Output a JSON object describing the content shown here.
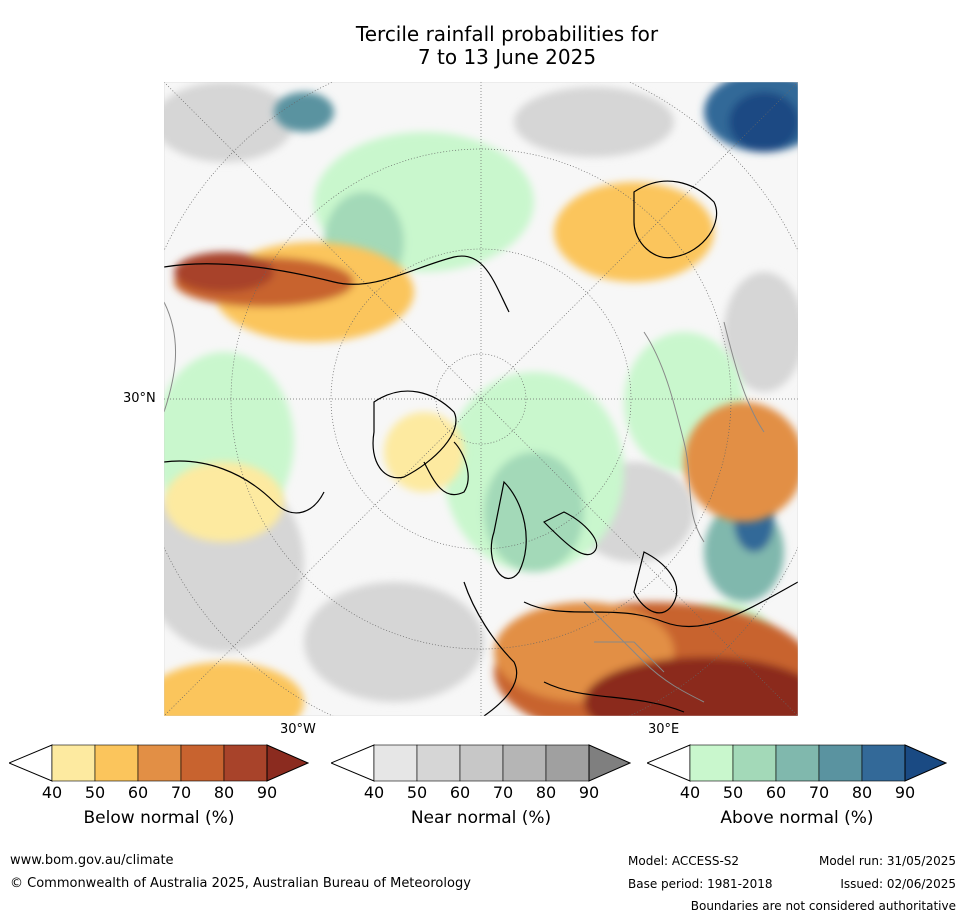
{
  "title": {
    "line1": "Tercile rainfall probabilities for",
    "line2": "7 to 13 June 2025"
  },
  "map": {
    "projection": "polar stereographic, northern hemisphere",
    "labels": {
      "lat": "30°N",
      "lon_w": "30°W",
      "lon_e": "30°E"
    }
  },
  "legend": [
    {
      "name": "below",
      "title": "Below normal (%)",
      "ticks": [
        "40",
        "50",
        "60",
        "70",
        "80",
        "90"
      ],
      "colors": [
        "#ffffff",
        "#fdeaa0",
        "#fbc55c",
        "#e28f45",
        "#c8632f",
        "#a8432a",
        "#8b2b1f"
      ]
    },
    {
      "name": "near",
      "title": "Near normal (%)",
      "ticks": [
        "40",
        "50",
        "60",
        "70",
        "80",
        "90"
      ],
      "colors": [
        "#ffffff",
        "#e6e6e6",
        "#d6d6d6",
        "#c7c7c7",
        "#b5b5b5",
        "#a0a0a0",
        "#7f7f7f"
      ]
    },
    {
      "name": "above",
      "title": "Above normal (%)",
      "ticks": [
        "40",
        "50",
        "60",
        "70",
        "80",
        "90"
      ],
      "colors": [
        "#ffffff",
        "#c9f7cd",
        "#a3d9b8",
        "#80b8ad",
        "#5a93a0",
        "#336998",
        "#1a4a83"
      ]
    }
  ],
  "footer": {
    "url": "www.bom.gov.au/climate",
    "copyright": "© Commonwealth of Australia 2025, Australian Bureau of Meteorology",
    "model": "Model: ACCESS-S2",
    "base_period": "Base period: 1981-2018",
    "model_run": "Model run: 31/05/2025",
    "issued": "Issued: 02/06/2025",
    "disclaimer": "Boundaries are not considered authoritative"
  }
}
